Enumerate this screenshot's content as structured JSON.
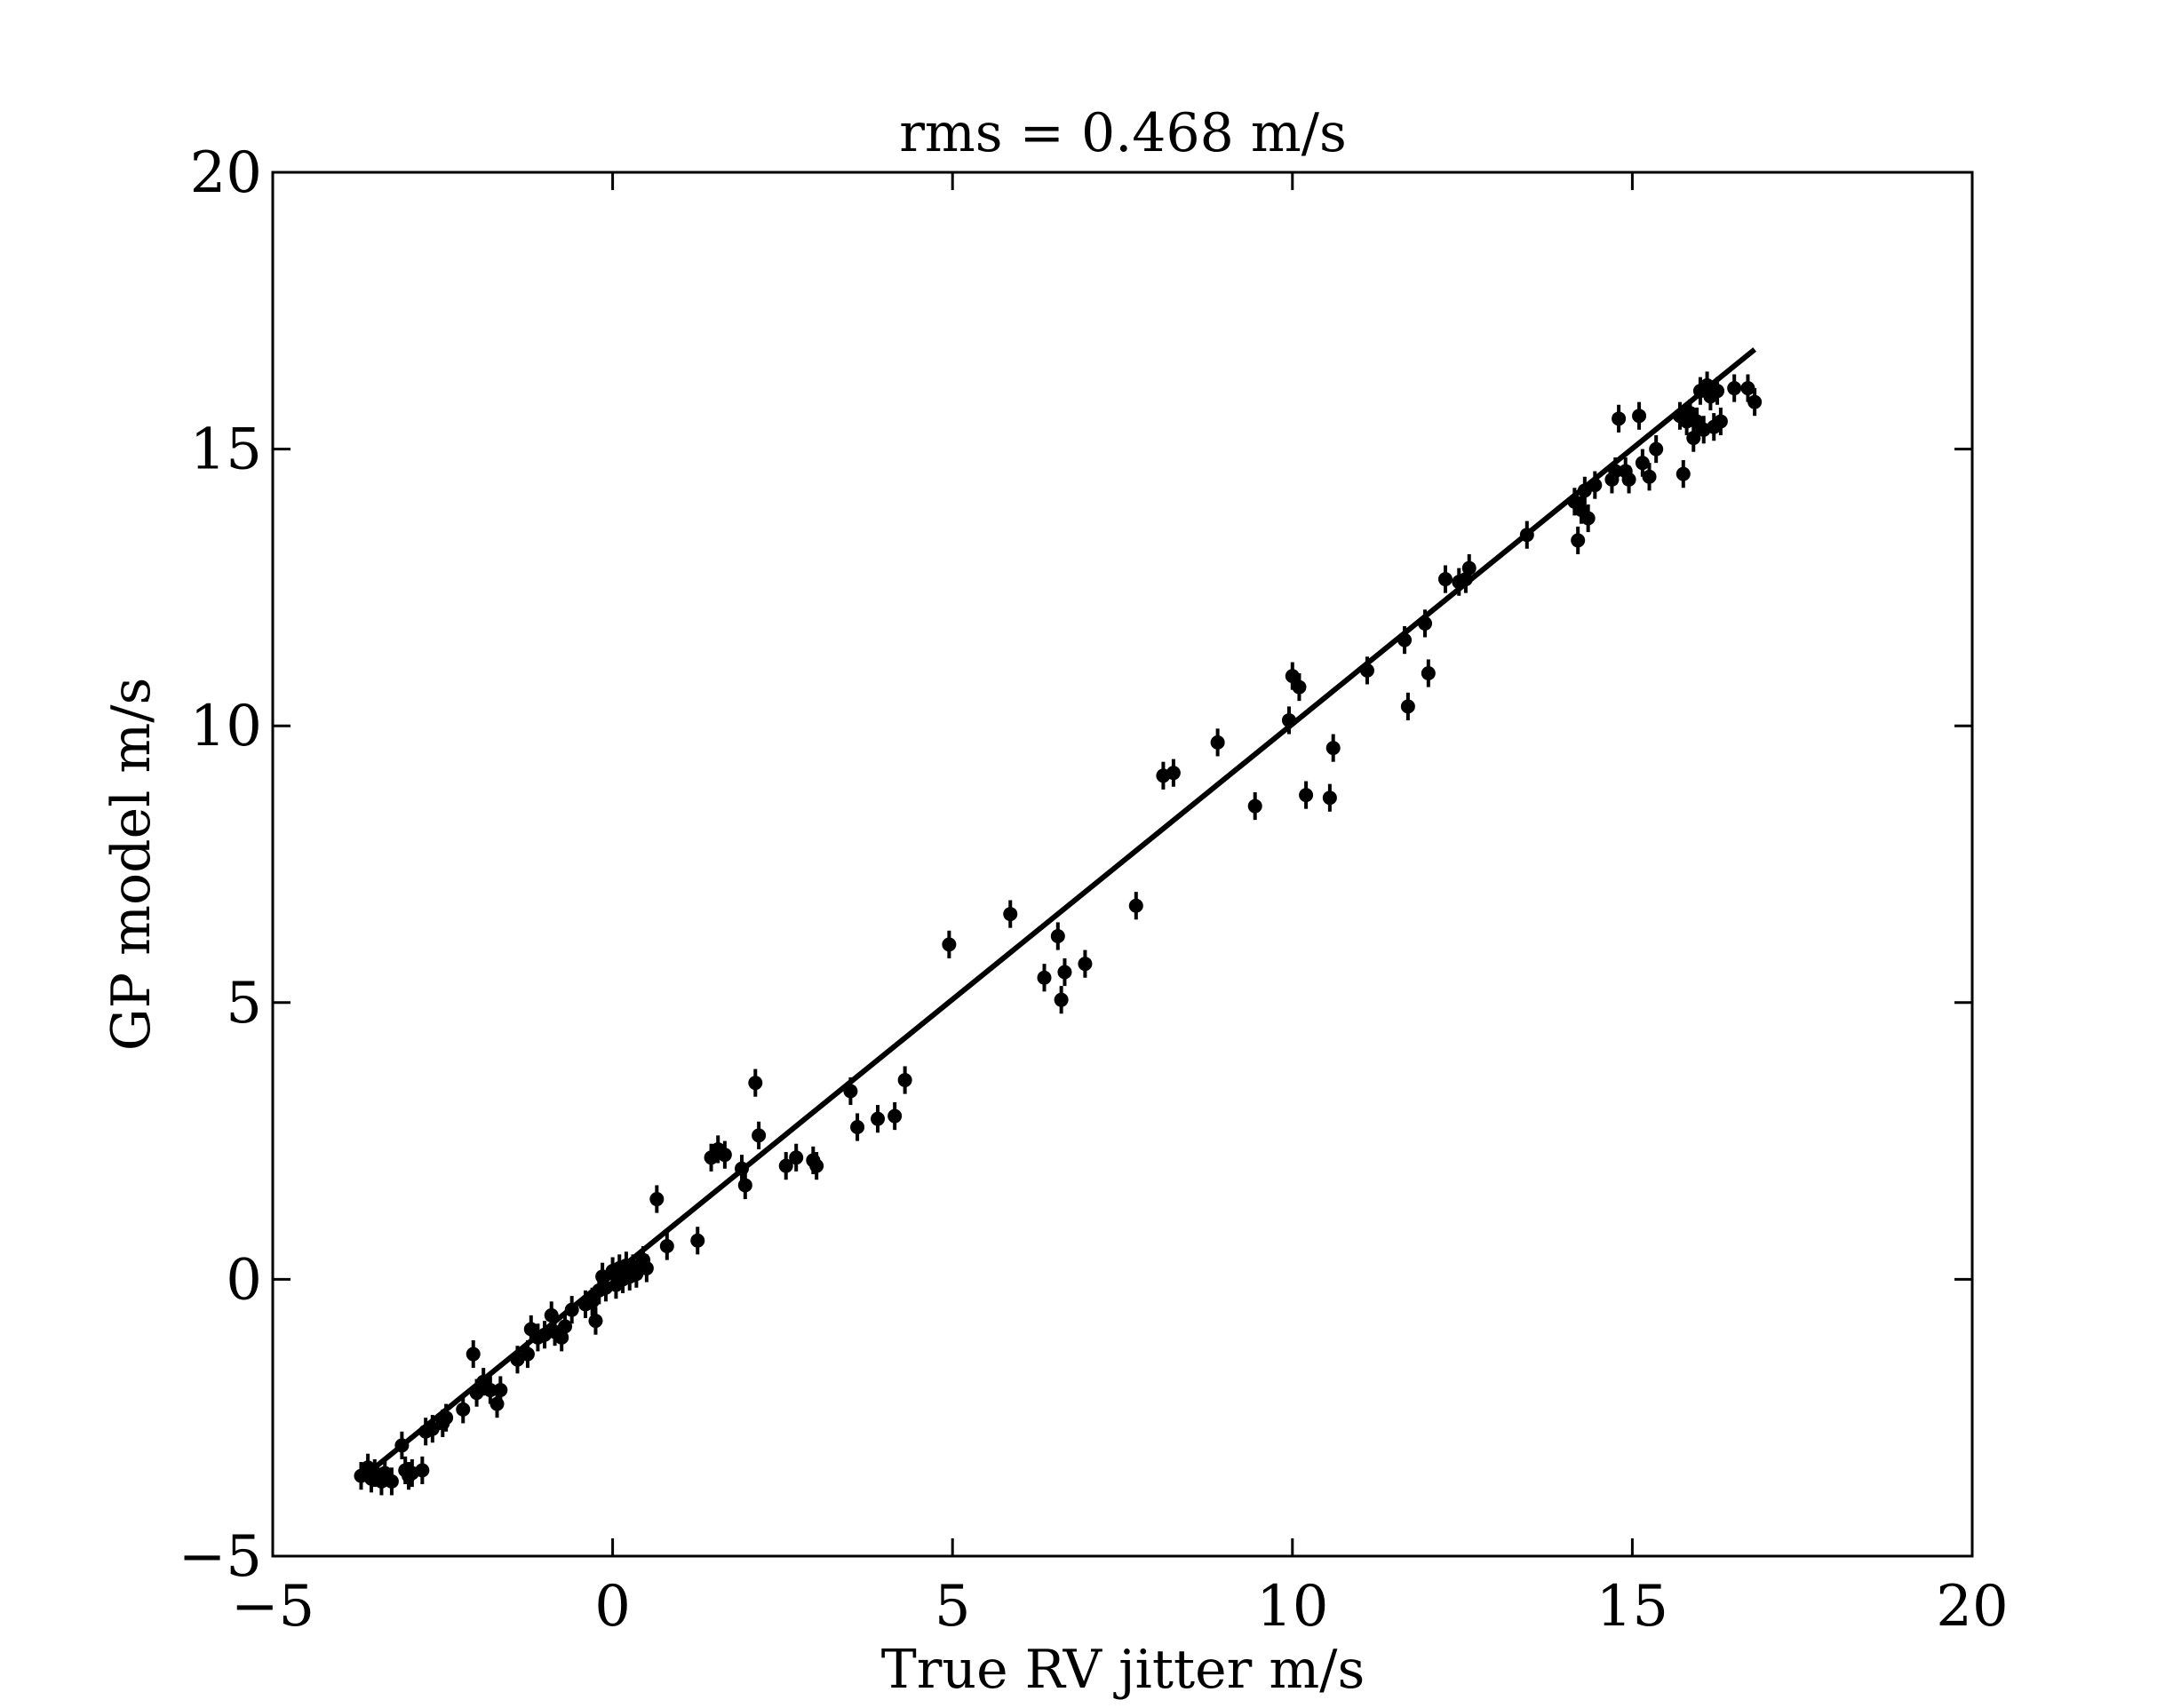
{
  "chart_data": {
    "type": "scatter",
    "title": "rms = 0.468 m/s",
    "xlabel": "True RV jitter m/s",
    "ylabel": "GP model m/s",
    "xlim": [
      -5,
      20
    ],
    "ylim": [
      -5,
      20
    ],
    "x_ticks": [
      -5,
      0,
      5,
      10,
      15,
      20
    ],
    "y_ticks": [
      -5,
      0,
      5,
      10,
      15,
      20
    ],
    "x_tick_labels": [
      "−5",
      "0",
      "5",
      "10",
      "15",
      "20"
    ],
    "y_tick_labels": [
      "−5",
      "0",
      "5",
      "10",
      "15",
      "20"
    ],
    "grid": false,
    "legend": "none",
    "colors": {
      "points": "#000000",
      "line": "#000000",
      "axes": "#000000"
    },
    "fit_line": {
      "x": [
        -3.5,
        16.8
      ],
      "y": [
        -3.4,
        16.8
      ]
    },
    "series": [
      {
        "type": "errorbar",
        "yerr": 0.25,
        "points": [
          [
            -3.7,
            -3.55
          ],
          [
            -3.6,
            -3.4
          ],
          [
            -3.55,
            -3.6
          ],
          [
            -3.5,
            -3.5
          ],
          [
            -3.4,
            -3.65
          ],
          [
            -3.35,
            -3.5
          ],
          [
            -3.25,
            -3.65
          ],
          [
            -3.1,
            -3.0
          ],
          [
            -3.05,
            -3.45
          ],
          [
            -3.0,
            -3.55
          ],
          [
            -2.95,
            -3.5
          ],
          [
            -2.8,
            -3.45
          ],
          [
            -2.75,
            -2.75
          ],
          [
            -2.65,
            -2.7
          ],
          [
            -2.5,
            -2.6
          ],
          [
            -2.45,
            -2.5
          ],
          [
            -2.2,
            -2.35
          ],
          [
            -2.05,
            -1.35
          ],
          [
            -2.0,
            -2.05
          ],
          [
            -1.9,
            -1.85
          ],
          [
            -1.8,
            -2.0
          ],
          [
            -1.7,
            -2.25
          ],
          [
            -1.65,
            -2.0
          ],
          [
            -1.4,
            -1.45
          ],
          [
            -1.25,
            -1.35
          ],
          [
            -1.2,
            -0.9
          ],
          [
            -1.1,
            -1.05
          ],
          [
            -1.0,
            -1.0
          ],
          [
            -0.9,
            -0.65
          ],
          [
            -0.85,
            -0.95
          ],
          [
            -0.75,
            -1.05
          ],
          [
            -0.7,
            -0.85
          ],
          [
            -0.6,
            -0.55
          ],
          [
            -0.4,
            -0.45
          ],
          [
            -0.3,
            -0.4
          ],
          [
            -0.25,
            -0.75
          ],
          [
            -0.2,
            -0.2
          ],
          [
            -0.15,
            0.05
          ],
          [
            -0.1,
            -0.15
          ],
          [
            0.0,
            0.15
          ],
          [
            0.05,
            -0.1
          ],
          [
            0.1,
            0.2
          ],
          [
            0.15,
            0.0
          ],
          [
            0.2,
            0.25
          ],
          [
            0.25,
            0.05
          ],
          [
            0.3,
            0.2
          ],
          [
            0.35,
            0.1
          ],
          [
            0.4,
            0.25
          ],
          [
            0.45,
            0.35
          ],
          [
            0.5,
            0.2
          ],
          [
            0.65,
            1.45
          ],
          [
            0.8,
            0.6
          ],
          [
            1.25,
            0.7
          ],
          [
            1.45,
            2.2
          ],
          [
            1.55,
            2.35
          ],
          [
            1.65,
            2.25
          ],
          [
            1.9,
            2.0
          ],
          [
            1.95,
            1.7
          ],
          [
            2.1,
            3.55
          ],
          [
            2.15,
            2.6
          ],
          [
            2.55,
            2.05
          ],
          [
            2.7,
            2.2
          ],
          [
            2.95,
            2.15
          ],
          [
            3.0,
            2.05
          ],
          [
            3.5,
            3.4
          ],
          [
            3.6,
            2.75
          ],
          [
            3.9,
            2.9
          ],
          [
            4.15,
            2.95
          ],
          [
            4.3,
            3.6
          ],
          [
            4.95,
            6.05
          ],
          [
            5.85,
            6.6
          ],
          [
            6.35,
            5.45
          ],
          [
            6.55,
            6.2
          ],
          [
            6.6,
            5.05
          ],
          [
            6.65,
            5.55
          ],
          [
            6.95,
            5.7
          ],
          [
            7.7,
            6.75
          ],
          [
            8.1,
            9.1
          ],
          [
            8.25,
            9.15
          ],
          [
            8.9,
            9.7
          ],
          [
            9.45,
            8.55
          ],
          [
            9.95,
            10.1
          ],
          [
            10.0,
            10.9
          ],
          [
            10.1,
            10.7
          ],
          [
            10.2,
            8.75
          ],
          [
            10.55,
            8.7
          ],
          [
            10.6,
            9.6
          ],
          [
            11.1,
            11.0
          ],
          [
            11.65,
            11.55
          ],
          [
            11.7,
            10.35
          ],
          [
            11.95,
            11.85
          ],
          [
            12.0,
            10.95
          ],
          [
            12.25,
            12.65
          ],
          [
            12.45,
            12.6
          ],
          [
            12.55,
            12.65
          ],
          [
            12.6,
            12.85
          ],
          [
            13.45,
            13.45
          ],
          [
            14.15,
            14.05
          ],
          [
            14.2,
            13.35
          ],
          [
            14.25,
            13.9
          ],
          [
            14.3,
            14.25
          ],
          [
            14.35,
            13.75
          ],
          [
            14.45,
            14.35
          ],
          [
            14.7,
            14.45
          ],
          [
            14.75,
            14.6
          ],
          [
            14.8,
            15.55
          ],
          [
            14.9,
            14.6
          ],
          [
            14.95,
            14.45
          ],
          [
            15.1,
            15.6
          ],
          [
            15.15,
            14.75
          ],
          [
            15.25,
            14.5
          ],
          [
            15.35,
            15.0
          ],
          [
            15.7,
            15.6
          ],
          [
            15.75,
            14.55
          ],
          [
            15.8,
            15.5
          ],
          [
            15.85,
            15.65
          ],
          [
            15.9,
            15.2
          ],
          [
            15.95,
            15.5
          ],
          [
            16.0,
            16.05
          ],
          [
            16.05,
            15.35
          ],
          [
            16.1,
            16.15
          ],
          [
            16.15,
            15.95
          ],
          [
            16.2,
            15.4
          ],
          [
            16.25,
            16.05
          ],
          [
            16.3,
            15.5
          ],
          [
            16.5,
            16.1
          ],
          [
            16.7,
            16.1
          ],
          [
            16.8,
            15.85
          ]
        ]
      }
    ]
  }
}
